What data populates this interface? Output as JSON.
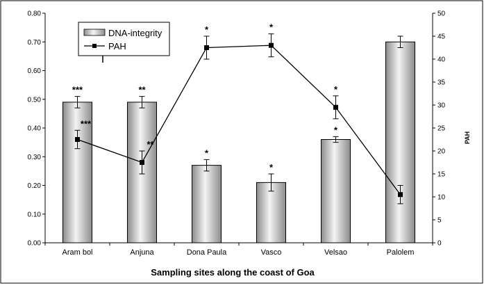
{
  "chart_data": {
    "type": "bar",
    "categories": [
      "Aram  bol",
      "Anjuna",
      "Dona Paula",
      "Vasco",
      "Velsao",
      "Palolem"
    ],
    "xlabel": "Sampling sites along the coast of Goa",
    "ylabel": "",
    "y2label": "PAH",
    "ylim": [
      0,
      0.8
    ],
    "y2lim": [
      0,
      50
    ],
    "yticks": [
      "0.00",
      "0.10",
      "0.20",
      "0.30",
      "0.40",
      "0.50",
      "0.60",
      "0.70",
      "0.80"
    ],
    "y2ticks": [
      "0",
      "5",
      "10",
      "15",
      "20",
      "25",
      "30",
      "35",
      "40",
      "45",
      "50"
    ],
    "legend_position": "top-left",
    "series": [
      {
        "name": "DNA-integrity",
        "type": "bar",
        "axis": "left",
        "values": [
          0.49,
          0.49,
          0.27,
          0.21,
          0.36,
          0.7
        ],
        "errors": [
          0.02,
          0.02,
          0.02,
          0.03,
          0.01,
          0.02
        ],
        "significance": [
          "***",
          "**",
          "*",
          "*",
          "*",
          ""
        ]
      },
      {
        "name": "PAH",
        "type": "line",
        "axis": "right",
        "values": [
          22.5,
          17.5,
          42.5,
          43.0,
          29.5,
          10.5
        ],
        "errors": [
          2.0,
          2.5,
          2.5,
          2.5,
          2.5,
          2.0
        ],
        "significance": [
          "***",
          "**",
          "*",
          "*",
          "*",
          ""
        ]
      }
    ]
  }
}
